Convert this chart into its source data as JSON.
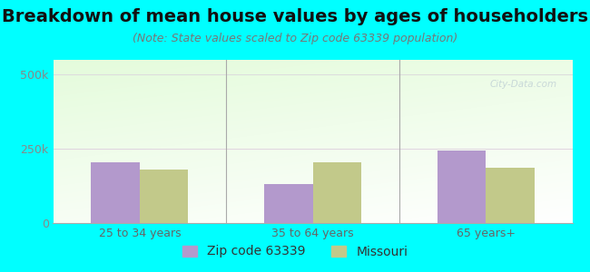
{
  "title": "Breakdown of mean house values by ages of householders",
  "subtitle": "(Note: State values scaled to Zip code 63339 population)",
  "categories": [
    "25 to 34 years",
    "35 to 64 years",
    "65 years+"
  ],
  "zip_values": [
    205000,
    130000,
    245000
  ],
  "state_values": [
    180000,
    205000,
    185000
  ],
  "zip_label": "Zip code 63339",
  "state_label": "Missouri",
  "zip_color": "#b399cc",
  "state_color": "#c2c98a",
  "ylim": [
    0,
    550000
  ],
  "yticks": [
    0,
    250000,
    500000
  ],
  "ytick_labels": [
    "0",
    "250k",
    "500k"
  ],
  "background_color": "#00ffff",
  "bar_width": 0.28,
  "title_fontsize": 14,
  "subtitle_fontsize": 9,
  "tick_fontsize": 9,
  "legend_fontsize": 10,
  "watermark": "City-Data.com"
}
